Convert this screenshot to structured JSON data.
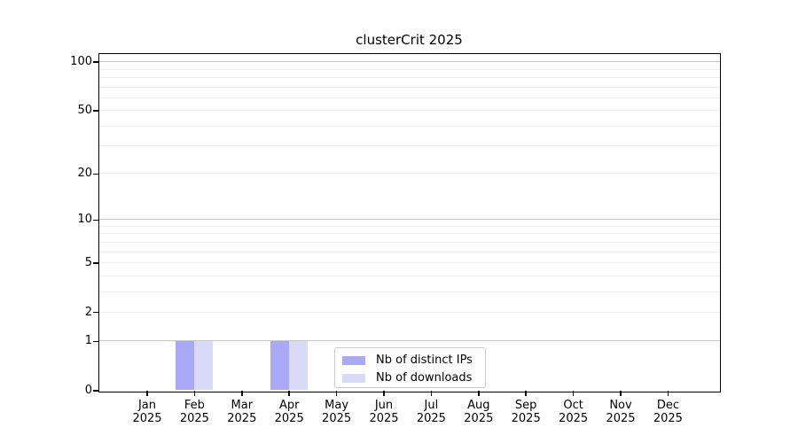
{
  "title": "clusterCrit 2025",
  "colors": {
    "bar_distinct_ips": "#a9a9f8",
    "bar_downloads": "#d9d9f8",
    "grid_major": "#c6c6c6",
    "grid_minor": "#ededed",
    "axis": "#000000",
    "text": "#000000",
    "legend_border": "#cccccc",
    "background": "#ffffff"
  },
  "chart_data": {
    "type": "bar",
    "title": "clusterCrit 2025",
    "categories": [
      "Jan 2025",
      "Feb 2025",
      "Mar 2025",
      "Apr 2025",
      "May 2025",
      "Jun 2025",
      "Jul 2025",
      "Aug 2025",
      "Sep 2025",
      "Oct 2025",
      "Nov 2025",
      "Dec 2025"
    ],
    "series": [
      {
        "name": "Nb of distinct IPs",
        "color": "#a9a9f8",
        "values": [
          0,
          1,
          0,
          1,
          0,
          0,
          0,
          0,
          0,
          0,
          0,
          0
        ]
      },
      {
        "name": "Nb of downloads",
        "color": "#d9d9f8",
        "values": [
          0,
          1,
          0,
          1,
          0,
          0,
          0,
          0,
          0,
          0,
          0,
          0
        ]
      }
    ],
    "xlabel": "",
    "ylabel": "",
    "yscale": "log1p",
    "ylim": [
      0,
      110
    ],
    "y_ticks": [
      0,
      1,
      2,
      5,
      10,
      20,
      50,
      100
    ],
    "y_major_gridlines": [
      1,
      10,
      100
    ],
    "y_minor_gridlines": [
      2,
      3,
      4,
      5,
      6,
      7,
      8,
      9,
      20,
      30,
      40,
      50,
      60,
      70,
      80,
      90
    ],
    "grid": true,
    "legend": {
      "position": "inside-bottom-center",
      "entries": [
        "Nb of distinct IPs",
        "Nb of downloads"
      ]
    }
  }
}
